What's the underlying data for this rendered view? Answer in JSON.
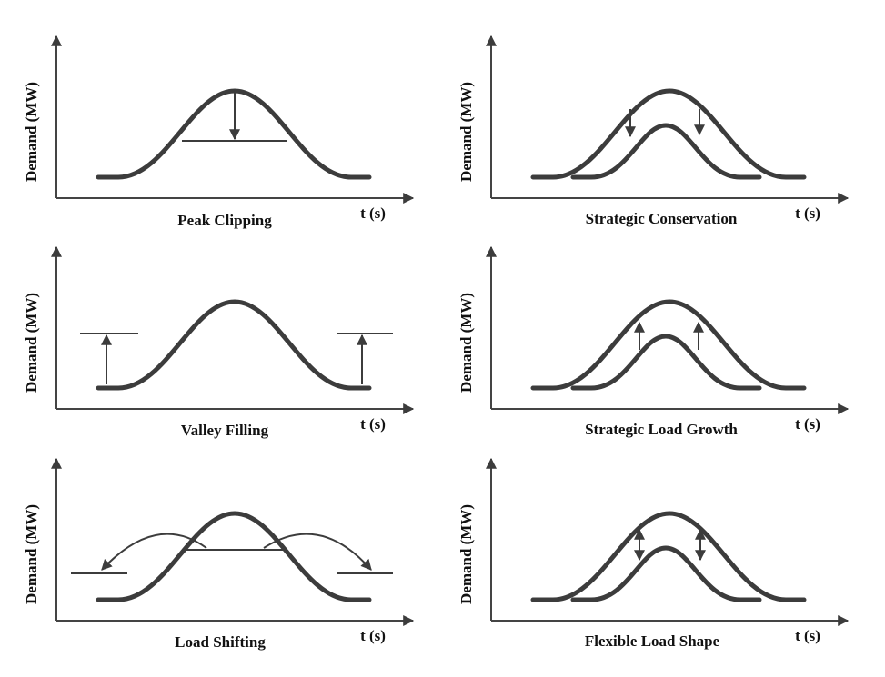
{
  "panels": [
    {
      "y_label": "Demand (MW)",
      "x_label": "t (s)",
      "caption": "Peak Clipping"
    },
    {
      "y_label": "Demand (MW)",
      "x_label": "t (s)",
      "caption": "Strategic Conservation"
    },
    {
      "y_label": "Demand (MW)",
      "x_label": "t (s)",
      "caption": "Valley Filling"
    },
    {
      "y_label": "Demand (MW)",
      "x_label": "t (s)",
      "caption": "Strategic Load Growth"
    },
    {
      "y_label": "Demand (MW)",
      "x_label": "t (s)",
      "caption": "Load Shifting"
    },
    {
      "y_label": "Demand (MW)",
      "x_label": "t (s)",
      "caption": "Flexible Load Shape"
    }
  ]
}
